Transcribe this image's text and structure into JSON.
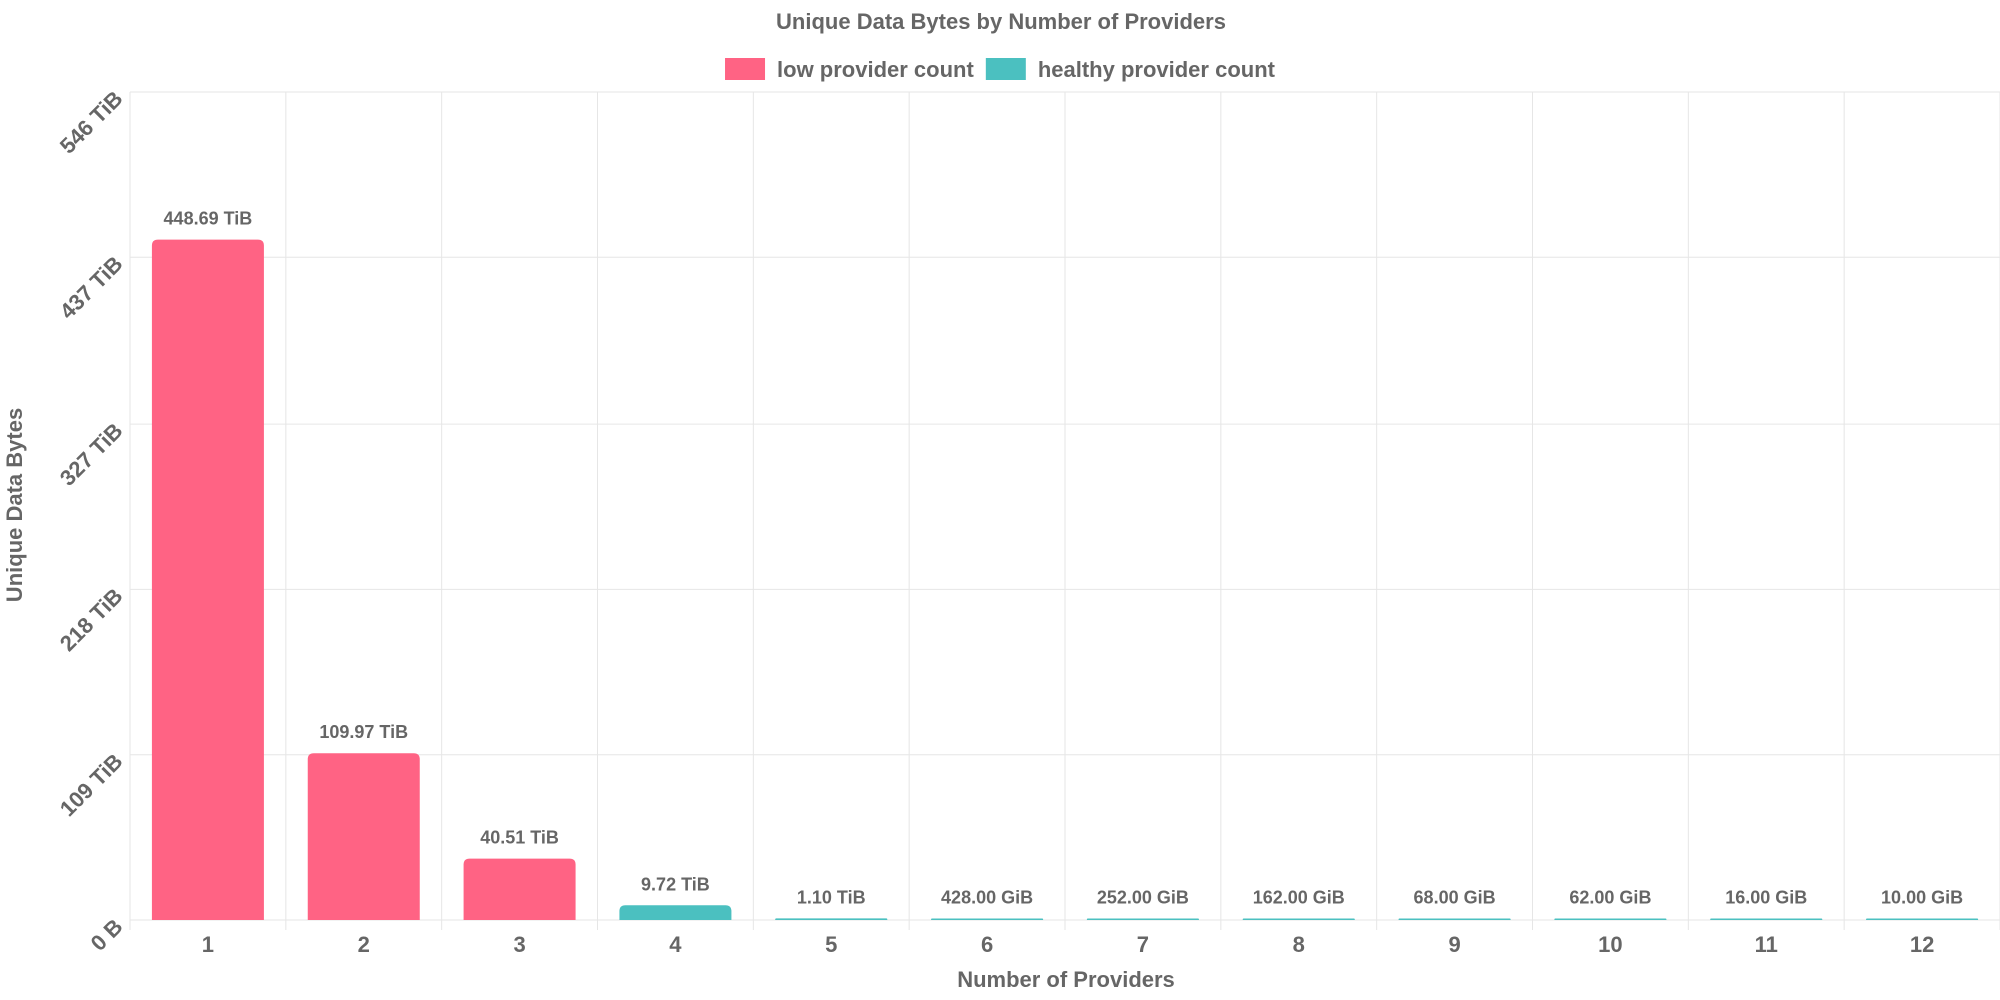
{
  "chart_data": {
    "type": "bar",
    "title": "Unique Data Bytes by Number of Providers",
    "xlabel": "Number of Providers",
    "ylabel": "Unique Data Bytes",
    "categories": [
      "1",
      "2",
      "3",
      "4",
      "5",
      "6",
      "7",
      "8",
      "9",
      "10",
      "11",
      "12"
    ],
    "values_tib": [
      448.69,
      109.97,
      40.51,
      9.72,
      1.1,
      0.41797,
      0.24609,
      0.1582,
      0.06641,
      0.06055,
      0.01563,
      0.00977
    ],
    "data_labels": [
      "448.69 TiB",
      "109.97 TiB",
      "40.51 TiB",
      "9.72 TiB",
      "1.10 TiB",
      "428.00 GiB",
      "252.00 GiB",
      "162.00 GiB",
      "68.00 GiB",
      "62.00 GiB",
      "16.00 GiB",
      "10.00 GiB"
    ],
    "bar_series": [
      "low",
      "low",
      "low",
      "healthy",
      "healthy",
      "healthy",
      "healthy",
      "healthy",
      "healthy",
      "healthy",
      "healthy",
      "healthy"
    ],
    "series": [
      {
        "key": "low",
        "name": "low provider count",
        "color": "#ff6384"
      },
      {
        "key": "healthy",
        "name": "healthy provider count",
        "color": "#4bc0c0"
      }
    ],
    "yticks_tib": [
      0,
      109,
      218,
      327,
      437,
      546
    ],
    "ytick_labels": [
      "0 B",
      "109 TiB",
      "218 TiB",
      "327 TiB",
      "437 TiB",
      "546 TiB"
    ],
    "ylim": [
      0,
      546
    ],
    "legend_position": "top",
    "grid": true
  }
}
